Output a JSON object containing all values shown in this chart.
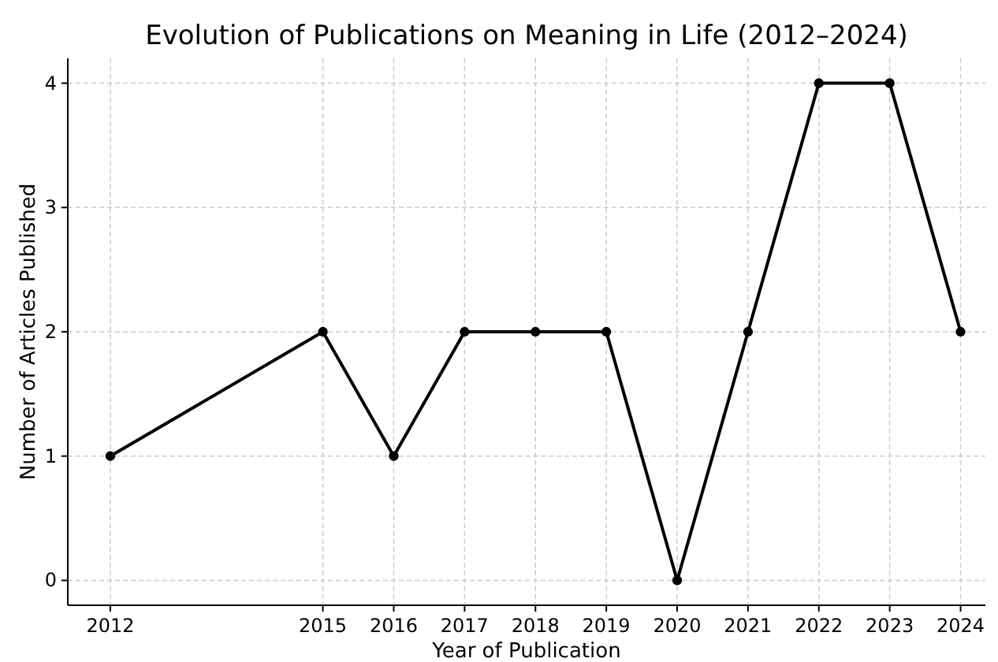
{
  "chart_data": {
    "type": "line",
    "title": "Evolution of Publications on Meaning in Life (2012–2024)",
    "xlabel": "Year of Publication",
    "ylabel": "Number of Articles Published",
    "x": [
      2012,
      2015,
      2016,
      2017,
      2018,
      2019,
      2020,
      2021,
      2022,
      2023,
      2024
    ],
    "series": [
      {
        "color": "#000000",
        "values": [
          1,
          2,
          1,
          2,
          2,
          2,
          0,
          2,
          4,
          4,
          2
        ]
      }
    ],
    "xlim": [
      2011.4,
      2024.35
    ],
    "xticks": [
      2012,
      2015,
      2016,
      2017,
      2018,
      2019,
      2020,
      2021,
      2022,
      2023,
      2024
    ],
    "ylim": [
      -0.2,
      4.2
    ],
    "yticks": [
      0,
      1,
      2,
      3,
      4
    ],
    "grid": true,
    "marker": "circle",
    "line_style": "solid"
  }
}
